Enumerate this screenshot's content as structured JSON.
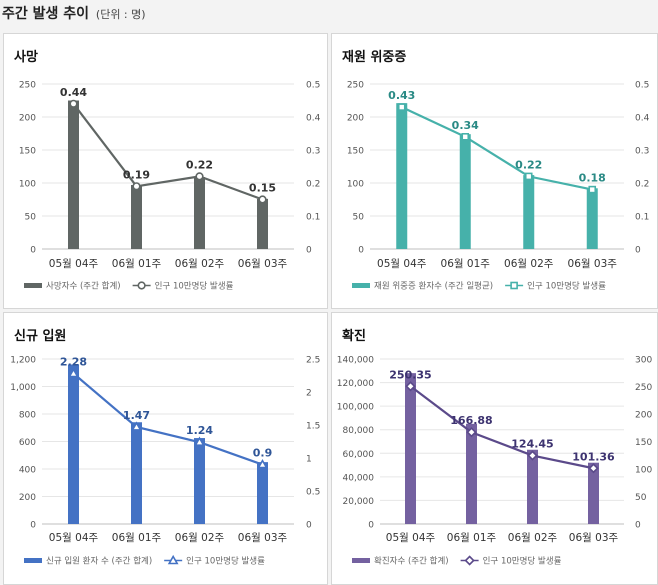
{
  "page": {
    "title": "주간 발생 추이",
    "unit_note": "(단위 : 명)"
  },
  "chart_data": [
    {
      "type": "bar+line",
      "title": "사망",
      "categories": [
        "05월 04주",
        "06월 01주",
        "06월 02주",
        "06월 03주"
      ],
      "series": [
        {
          "name": "사망자수 (주간 합계)",
          "type": "bar",
          "axis": "left",
          "values": [
            225,
            97,
            109,
            76
          ]
        },
        {
          "name": "인구 10만명당 발생률",
          "type": "line",
          "axis": "right",
          "marker": "circle",
          "values": [
            0.44,
            0.19,
            0.22,
            0.15
          ],
          "labels": [
            "0.44",
            "0.19",
            "0.22",
            "0.15"
          ]
        }
      ],
      "y_left": {
        "min": 0,
        "max": 250,
        "ticks": [
          "0",
          "50",
          "100",
          "150",
          "200",
          "250"
        ]
      },
      "y_right": {
        "min": 0,
        "max": 0.5,
        "ticks": [
          "0",
          "0.1",
          "0.2",
          "0.3",
          "0.4",
          "0.5"
        ]
      },
      "colors": {
        "bar": "#606664",
        "line": "#606664",
        "label": "#333333"
      }
    },
    {
      "type": "bar+line",
      "title": "재원 위중증",
      "categories": [
        "05월 04주",
        "06월 01주",
        "06월 02주",
        "06월 03주"
      ],
      "series": [
        {
          "name": "재원 위중증 환자수 (주간 일평균)",
          "type": "bar",
          "axis": "left",
          "values": [
            221,
            174,
            112,
            92
          ]
        },
        {
          "name": "인구 10만명당 발생률",
          "type": "line",
          "axis": "right",
          "marker": "square",
          "values": [
            0.43,
            0.34,
            0.22,
            0.18
          ],
          "labels": [
            "0.43",
            "0.34",
            "0.22",
            "0.18"
          ]
        }
      ],
      "y_left": {
        "min": 0,
        "max": 250,
        "ticks": [
          "0",
          "50",
          "100",
          "150",
          "200",
          "250"
        ]
      },
      "y_right": {
        "min": 0,
        "max": 0.5,
        "ticks": [
          "0",
          "0.1",
          "0.2",
          "0.3",
          "0.4",
          "0.5"
        ]
      },
      "colors": {
        "bar": "#46b1aa",
        "line": "#46b1aa",
        "label": "#2a8a85"
      }
    },
    {
      "type": "bar+line",
      "title": "신규 입원",
      "categories": [
        "05월 04주",
        "06월 01주",
        "06월 02주",
        "06월 03주"
      ],
      "series": [
        {
          "name": "신규 입원 환자 수 (주간 합계)",
          "type": "bar",
          "axis": "left",
          "values": [
            1160,
            740,
            625,
            450
          ]
        },
        {
          "name": "인구 10만명당 발생률",
          "type": "line",
          "axis": "right",
          "marker": "triangle",
          "values": [
            2.28,
            1.47,
            1.24,
            0.9
          ],
          "labels": [
            "2.28",
            "1.47",
            "1.24",
            "0.9"
          ]
        }
      ],
      "y_left": {
        "min": 0,
        "max": 1200,
        "ticks": [
          "0",
          "200",
          "400",
          "600",
          "800",
          "1,000",
          "1,200"
        ]
      },
      "y_right": {
        "min": 0,
        "max": 2.5,
        "ticks": [
          "0",
          "0.5",
          "1",
          "1.5",
          "2",
          "2.5"
        ]
      },
      "colors": {
        "bar": "#4472c4",
        "line": "#4472c4",
        "label": "#2f5597"
      }
    },
    {
      "type": "bar+line",
      "title": "확진",
      "categories": [
        "05월 04주",
        "06월 01주",
        "06월 02주",
        "06월 03주"
      ],
      "series": [
        {
          "name": "확진자수 (주간 합계)",
          "type": "bar",
          "axis": "left",
          "values": [
            128000,
            85000,
            63000,
            52000
          ]
        },
        {
          "name": "인구 10만명당 발생률",
          "type": "line",
          "axis": "right",
          "marker": "diamond",
          "values": [
            250.35,
            166.88,
            124.45,
            101.36
          ],
          "labels": [
            "250.35",
            "166.88",
            "124.45",
            "101.36"
          ]
        }
      ],
      "y_left": {
        "min": 0,
        "max": 140000,
        "ticks": [
          "0",
          "20,000",
          "40,000",
          "60,000",
          "80,000",
          "100,000",
          "120,000",
          "140,000"
        ]
      },
      "y_right": {
        "min": 0,
        "max": 300,
        "ticks": [
          "0",
          "50",
          "100",
          "150",
          "200",
          "250",
          "300"
        ]
      },
      "colors": {
        "bar": "#7461a0",
        "line": "#5b4a8a",
        "label": "#3d3370"
      }
    }
  ]
}
